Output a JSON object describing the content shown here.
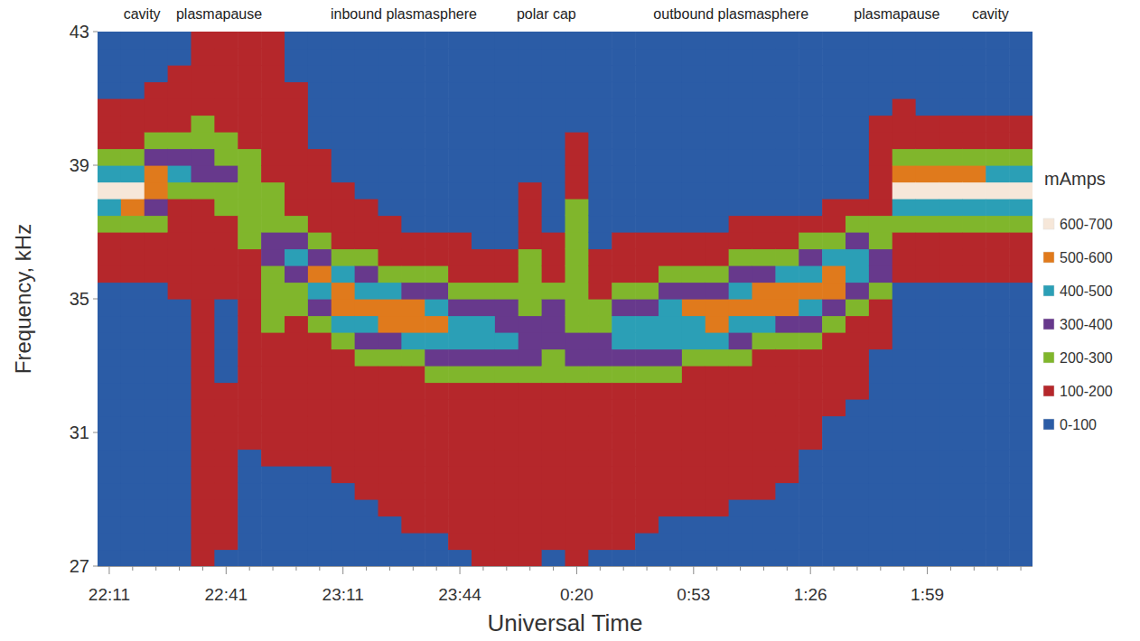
{
  "chart_data": {
    "type": "heatmap",
    "x_label": "Universal Time",
    "y_label": "Frequency, kHz",
    "categories": [
      "22:11",
      null,
      null,
      null,
      null,
      "22:41",
      null,
      null,
      null,
      null,
      "23:11",
      null,
      null,
      null,
      null,
      "23:44",
      null,
      null,
      null,
      null,
      "0:20",
      null,
      null,
      null,
      null,
      "0:53",
      null,
      null,
      null,
      null,
      "1:26",
      null,
      null,
      null,
      null,
      "1:59",
      null,
      null,
      null,
      null
    ],
    "y": [
      27.25,
      27.75,
      28.25,
      28.75,
      29.25,
      29.75,
      30.25,
      30.75,
      31.25,
      31.75,
      32.25,
      32.75,
      33.25,
      33.75,
      34.25,
      34.75,
      35.25,
      35.75,
      36.25,
      36.75,
      37.25,
      37.75,
      38.25,
      38.75,
      39.25,
      39.75,
      40.25,
      40.75,
      41.25,
      41.75,
      42.25,
      42.75
    ],
    "ylim": [
      27,
      43
    ],
    "yticks": [
      27,
      31,
      35,
      39,
      43
    ],
    "values": [
      [
        50,
        50,
        50,
        50,
        50,
        50,
        50,
        50,
        50,
        50,
        50,
        50,
        50,
        50,
        50,
        50,
        50,
        150,
        150,
        150,
        250,
        450,
        650,
        450,
        250,
        150,
        150,
        150,
        50,
        50,
        50,
        50
      ],
      [
        50,
        50,
        50,
        50,
        50,
        50,
        50,
        50,
        50,
        50,
        50,
        50,
        50,
        50,
        50,
        50,
        50,
        150,
        150,
        150,
        250,
        550,
        650,
        450,
        250,
        150,
        150,
        150,
        50,
        50,
        50,
        50
      ],
      [
        50,
        50,
        50,
        50,
        50,
        50,
        50,
        50,
        50,
        50,
        50,
        50,
        50,
        50,
        50,
        50,
        50,
        150,
        150,
        150,
        250,
        350,
        550,
        550,
        350,
        250,
        150,
        150,
        150,
        50,
        50,
        50
      ],
      [
        50,
        50,
        50,
        50,
        50,
        50,
        50,
        50,
        50,
        50,
        50,
        50,
        50,
        50,
        50,
        50,
        150,
        150,
        150,
        150,
        150,
        150,
        250,
        450,
        350,
        250,
        150,
        150,
        150,
        150,
        50,
        50
      ],
      [
        150,
        150,
        150,
        150,
        150,
        150,
        150,
        150,
        150,
        150,
        150,
        150,
        150,
        150,
        150,
        150,
        150,
        150,
        150,
        150,
        150,
        150,
        250,
        350,
        350,
        250,
        250,
        150,
        150,
        150,
        150,
        150
      ],
      [
        50,
        150,
        150,
        150,
        150,
        150,
        150,
        150,
        150,
        150,
        150,
        50,
        50,
        50,
        50,
        50,
        150,
        150,
        150,
        150,
        150,
        250,
        250,
        350,
        250,
        250,
        150,
        150,
        150,
        150,
        150,
        150
      ],
      [
        50,
        50,
        50,
        50,
        50,
        50,
        50,
        150,
        150,
        150,
        150,
        150,
        150,
        150,
        150,
        150,
        150,
        150,
        150,
        250,
        250,
        250,
        250,
        250,
        250,
        150,
        150,
        150,
        150,
        150,
        150,
        150
      ],
      [
        50,
        50,
        50,
        50,
        50,
        50,
        150,
        150,
        150,
        150,
        150,
        150,
        150,
        150,
        250,
        250,
        250,
        250,
        350,
        350,
        250,
        250,
        250,
        150,
        150,
        150,
        150,
        150,
        150,
        150,
        150,
        150
      ],
      [
        50,
        50,
        50,
        50,
        50,
        50,
        150,
        150,
        150,
        150,
        150,
        150,
        150,
        150,
        150,
        250,
        250,
        350,
        450,
        350,
        250,
        150,
        150,
        150,
        150,
        150,
        150,
        150,
        150,
        50,
        50,
        50
      ],
      [
        50,
        50,
        50,
        50,
        50,
        50,
        150,
        150,
        150,
        150,
        150,
        150,
        150,
        150,
        250,
        350,
        450,
        550,
        350,
        250,
        150,
        150,
        150,
        150,
        150,
        50,
        50,
        50,
        50,
        50,
        50,
        50
      ],
      [
        50,
        50,
        50,
        50,
        50,
        150,
        150,
        150,
        150,
        150,
        150,
        150,
        150,
        250,
        450,
        550,
        550,
        450,
        250,
        150,
        150,
        150,
        150,
        50,
        50,
        50,
        50,
        50,
        50,
        50,
        50,
        50
      ],
      [
        50,
        50,
        50,
        50,
        150,
        150,
        150,
        150,
        150,
        150,
        150,
        150,
        250,
        350,
        450,
        550,
        450,
        350,
        250,
        150,
        150,
        150,
        50,
        50,
        50,
        50,
        50,
        50,
        50,
        50,
        50,
        50
      ],
      [
        50,
        50,
        50,
        150,
        150,
        150,
        150,
        150,
        150,
        150,
        150,
        150,
        250,
        350,
        550,
        550,
        450,
        250,
        150,
        150,
        150,
        50,
        50,
        50,
        50,
        50,
        50,
        50,
        50,
        50,
        50,
        50
      ],
      [
        50,
        50,
        150,
        150,
        150,
        150,
        150,
        150,
        150,
        150,
        150,
        150,
        250,
        450,
        550,
        550,
        350,
        250,
        150,
        150,
        50,
        50,
        50,
        50,
        50,
        50,
        50,
        50,
        50,
        50,
        50,
        50
      ],
      [
        50,
        50,
        150,
        150,
        150,
        150,
        150,
        150,
        150,
        150,
        150,
        250,
        350,
        450,
        550,
        450,
        350,
        250,
        150,
        150,
        50,
        50,
        50,
        50,
        50,
        50,
        50,
        50,
        50,
        50,
        50,
        50
      ],
      [
        50,
        150,
        150,
        150,
        150,
        150,
        150,
        150,
        150,
        150,
        150,
        250,
        350,
        450,
        450,
        350,
        250,
        150,
        150,
        150,
        50,
        50,
        50,
        50,
        50,
        50,
        50,
        50,
        50,
        50,
        50,
        50
      ],
      [
        150,
        150,
        150,
        150,
        150,
        150,
        150,
        150,
        150,
        150,
        150,
        250,
        350,
        450,
        450,
        350,
        250,
        150,
        150,
        50,
        50,
        50,
        50,
        50,
        50,
        50,
        50,
        50,
        50,
        50,
        50,
        50
      ],
      [
        150,
        150,
        150,
        150,
        150,
        150,
        150,
        150,
        150,
        150,
        150,
        250,
        350,
        450,
        350,
        350,
        250,
        150,
        150,
        50,
        50,
        50,
        50,
        50,
        50,
        50,
        50,
        50,
        50,
        50,
        50,
        50
      ],
      [
        150,
        150,
        150,
        150,
        150,
        150,
        150,
        150,
        150,
        150,
        150,
        250,
        350,
        350,
        350,
        250,
        250,
        250,
        250,
        150,
        150,
        150,
        150,
        50,
        50,
        50,
        50,
        50,
        50,
        50,
        50,
        50
      ],
      [
        50,
        150,
        150,
        150,
        150,
        150,
        150,
        150,
        150,
        150,
        150,
        250,
        250,
        350,
        350,
        350,
        250,
        150,
        150,
        150,
        50,
        50,
        50,
        50,
        50,
        50,
        50,
        50,
        50,
        50,
        50,
        50
      ],
      [
        150,
        150,
        150,
        150,
        150,
        150,
        150,
        150,
        150,
        150,
        150,
        250,
        350,
        350,
        250,
        250,
        250,
        250,
        250,
        250,
        250,
        250,
        150,
        150,
        150,
        150,
        50,
        50,
        50,
        50,
        50,
        50
      ],
      [
        50,
        150,
        150,
        150,
        150,
        150,
        150,
        150,
        150,
        150,
        150,
        250,
        350,
        350,
        250,
        250,
        150,
        150,
        150,
        50,
        50,
        50,
        50,
        50,
        50,
        50,
        50,
        50,
        50,
        50,
        50,
        50
      ],
      [
        50,
        150,
        150,
        150,
        150,
        150,
        150,
        150,
        150,
        150,
        150,
        250,
        350,
        450,
        450,
        350,
        250,
        150,
        150,
        150,
        50,
        50,
        50,
        50,
        50,
        50,
        50,
        50,
        50,
        50,
        50,
        50
      ],
      [
        50,
        50,
        150,
        150,
        150,
        150,
        150,
        150,
        150,
        150,
        150,
        250,
        350,
        450,
        450,
        350,
        250,
        150,
        150,
        150,
        50,
        50,
        50,
        50,
        50,
        50,
        50,
        50,
        50,
        50,
        50,
        50
      ],
      [
        50,
        50,
        50,
        150,
        150,
        150,
        150,
        150,
        150,
        150,
        150,
        250,
        350,
        450,
        450,
        450,
        350,
        250,
        150,
        150,
        50,
        50,
        50,
        50,
        50,
        50,
        50,
        50,
        50,
        50,
        50,
        50
      ],
      [
        50,
        50,
        50,
        150,
        150,
        150,
        150,
        150,
        150,
        150,
        150,
        150,
        250,
        450,
        450,
        550,
        350,
        250,
        150,
        150,
        50,
        50,
        50,
        50,
        50,
        50,
        50,
        50,
        50,
        50,
        50,
        50
      ],
      [
        50,
        50,
        50,
        150,
        150,
        150,
        150,
        150,
        150,
        150,
        150,
        150,
        250,
        450,
        550,
        550,
        350,
        250,
        150,
        150,
        50,
        50,
        50,
        50,
        50,
        50,
        50,
        50,
        50,
        50,
        50,
        50
      ],
      [
        50,
        50,
        50,
        50,
        150,
        150,
        150,
        150,
        150,
        150,
        150,
        150,
        250,
        350,
        450,
        550,
        450,
        350,
        250,
        150,
        150,
        50,
        50,
        50,
        50,
        50,
        50,
        50,
        50,
        50,
        50,
        50
      ],
      [
        50,
        50,
        50,
        50,
        150,
        150,
        150,
        150,
        150,
        150,
        150,
        150,
        150,
        250,
        450,
        550,
        550,
        350,
        250,
        150,
        150,
        50,
        50,
        50,
        50,
        50,
        50,
        50,
        50,
        50,
        50,
        50
      ],
      [
        50,
        50,
        50,
        50,
        50,
        150,
        150,
        150,
        150,
        150,
        150,
        150,
        150,
        250,
        350,
        550,
        550,
        450,
        250,
        150,
        150,
        50,
        50,
        50,
        50,
        50,
        50,
        50,
        50,
        50,
        50,
        50
      ],
      [
        50,
        50,
        50,
        50,
        50,
        50,
        50,
        150,
        150,
        150,
        150,
        150,
        150,
        250,
        350,
        450,
        550,
        450,
        350,
        250,
        150,
        50,
        50,
        50,
        50,
        50,
        50,
        50,
        50,
        50,
        50,
        50
      ],
      [
        50,
        50,
        50,
        50,
        50,
        50,
        50,
        50,
        50,
        150,
        150,
        150,
        150,
        150,
        250,
        350,
        550,
        550,
        450,
        250,
        150,
        150,
        50,
        50,
        50,
        50,
        50,
        50,
        50,
        50,
        50,
        50
      ],
      [
        50,
        50,
        50,
        50,
        50,
        50,
        50,
        50,
        50,
        50,
        150,
        150,
        150,
        150,
        150,
        250,
        350,
        450,
        450,
        350,
        250,
        150,
        50,
        50,
        50,
        50,
        50,
        50,
        50,
        50,
        50,
        50
      ],
      [
        50,
        50,
        50,
        50,
        50,
        50,
        50,
        50,
        50,
        50,
        50,
        50,
        50,
        150,
        150,
        150,
        250,
        350,
        350,
        250,
        250,
        150,
        150,
        150,
        150,
        150,
        150,
        50,
        50,
        50,
        50,
        50
      ],
      [
        50,
        50,
        50,
        50,
        50,
        50,
        50,
        50,
        50,
        50,
        50,
        50,
        50,
        50,
        50,
        50,
        50,
        150,
        150,
        150,
        250,
        450,
        650,
        550,
        250,
        150,
        150,
        150,
        50,
        50,
        50,
        50
      ],
      [
        50,
        50,
        50,
        50,
        50,
        50,
        50,
        50,
        50,
        50,
        50,
        50,
        50,
        50,
        50,
        50,
        50,
        150,
        150,
        150,
        250,
        450,
        650,
        550,
        250,
        150,
        150,
        50,
        50,
        50,
        50,
        50
      ],
      [
        50,
        50,
        50,
        50,
        50,
        50,
        50,
        50,
        50,
        50,
        50,
        50,
        50,
        50,
        50,
        50,
        50,
        150,
        150,
        150,
        250,
        450,
        650,
        550,
        250,
        150,
        150,
        50,
        50,
        50,
        50,
        50
      ],
      [
        50,
        50,
        50,
        50,
        50,
        50,
        50,
        50,
        50,
        50,
        50,
        50,
        50,
        50,
        50,
        50,
        50,
        150,
        150,
        150,
        250,
        450,
        650,
        550,
        250,
        150,
        150,
        50,
        50,
        50,
        50,
        50
      ],
      [
        50,
        50,
        50,
        50,
        50,
        50,
        50,
        50,
        50,
        50,
        50,
        50,
        50,
        50,
        50,
        50,
        50,
        150,
        150,
        150,
        250,
        450,
        650,
        450,
        250,
        150,
        150,
        50,
        50,
        50,
        50,
        50
      ],
      [
        50,
        50,
        50,
        50,
        50,
        50,
        50,
        50,
        50,
        50,
        50,
        50,
        50,
        50,
        50,
        50,
        50,
        150,
        150,
        150,
        250,
        450,
        650,
        450,
        250,
        150,
        150,
        50,
        50,
        50,
        50,
        50
      ]
    ],
    "color_bar": {
      "title": "mAmps",
      "bands": [
        {
          "label": "600-700",
          "min": 600,
          "max": 700,
          "color": "#f6e7d9"
        },
        {
          "label": "500-600",
          "min": 500,
          "max": 600,
          "color": "#e07a1c"
        },
        {
          "label": "400-500",
          "min": 400,
          "max": 500,
          "color": "#2b9fb6"
        },
        {
          "label": "300-400",
          "min": 300,
          "max": 400,
          "color": "#67398c"
        },
        {
          "label": "200-300",
          "min": 200,
          "max": 300,
          "color": "#80b62c"
        },
        {
          "label": "100-200",
          "min": 100,
          "max": 200,
          "color": "#b5272b"
        },
        {
          "label": "0-100",
          "min": 0,
          "max": 100,
          "color": "#2b5ca6"
        }
      ]
    },
    "annotations": [
      {
        "text": "cavity",
        "x": 1.4
      },
      {
        "text": "plasmapause",
        "x": 4.7
      },
      {
        "text": "inbound plasmasphere",
        "x": 12.6
      },
      {
        "text": "polar cap",
        "x": 18.7
      },
      {
        "text": "outbound plasmasphere",
        "x": 26.6
      },
      {
        "text": "plasmapause",
        "x": 33.7
      },
      {
        "text": "cavity",
        "x": 37.7
      }
    ]
  }
}
